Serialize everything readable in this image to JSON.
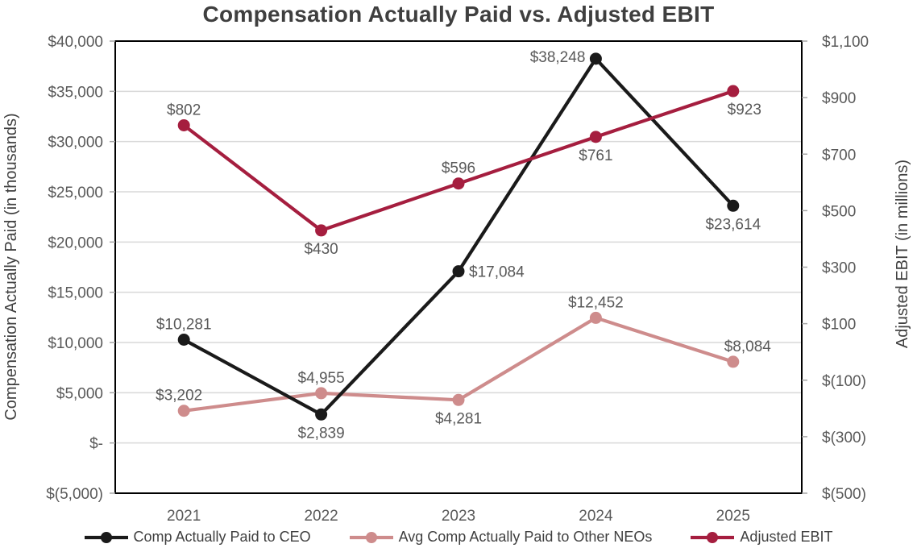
{
  "chart_data": {
    "type": "line",
    "title": "Compensation Actually Paid vs. Adjusted EBIT",
    "categories": [
      "2021",
      "2022",
      "2023",
      "2024",
      "2025"
    ],
    "grid": true,
    "legend_position": "bottom",
    "left_axis": {
      "label": "Compensation Actually Paid (in thousands)",
      "min": -5000,
      "max": 40000,
      "step": 5000,
      "tick_labels": [
        "$40,000",
        "$35,000",
        "$30,000",
        "$25,000",
        "$20,000",
        "$15,000",
        "$10,000",
        "$5,000",
        "$-",
        "$(5,000)"
      ]
    },
    "right_axis": {
      "label": "Adjusted EBIT (in millions)",
      "min": -500,
      "max": 1100,
      "step": 200,
      "tick_labels": [
        "$1,100",
        "$900",
        "$700",
        "$500",
        "$300",
        "$100",
        "$(100)",
        "$(300)",
        "$(500)"
      ]
    },
    "series": [
      {
        "name": "Avg Comp Actually Paid to Other NEOs",
        "axis": "left",
        "color": "#ce8c8c",
        "values": [
          3202,
          4955,
          4281,
          12452,
          8084
        ],
        "labels": [
          {
            "text": "$3,202",
            "pos": "above",
            "dx": -6
          },
          {
            "text": "$4,955",
            "pos": "above"
          },
          {
            "text": "$4,281",
            "pos": "below"
          },
          {
            "text": "$12,452",
            "pos": "above"
          },
          {
            "text": "$8,084",
            "pos": "above",
            "dx": 18
          }
        ]
      },
      {
        "name": "Comp Actually Paid to CEO",
        "axis": "left",
        "color": "#1a1a1a",
        "values": [
          10281,
          2839,
          17084,
          38248,
          23614
        ],
        "labels": [
          {
            "text": "$10,281",
            "pos": "above"
          },
          {
            "text": "$2,839",
            "pos": "below"
          },
          {
            "text": "$17,084",
            "pos": "right"
          },
          {
            "text": "$38,248",
            "pos": "left"
          },
          {
            "text": "$23,614",
            "pos": "below"
          }
        ]
      },
      {
        "name": "Adjusted EBIT",
        "axis": "right",
        "color": "#a51e3f",
        "values": [
          802,
          430,
          596,
          761,
          923
        ],
        "labels": [
          {
            "text": "$802",
            "pos": "above"
          },
          {
            "text": "$430",
            "pos": "below"
          },
          {
            "text": "$596",
            "pos": "above"
          },
          {
            "text": "$761",
            "pos": "below"
          },
          {
            "text": "$923",
            "pos": "below",
            "dx": 14
          }
        ]
      }
    ],
    "legend_order": [
      "Comp Actually Paid to CEO",
      "Avg Comp Actually Paid to Other NEOs",
      "Adjusted EBIT"
    ],
    "colors": {
      "grid": "#d9d9d9",
      "plot_border": "#000000",
      "tick_mark": "#a6a6a6",
      "tick_text": "#595959",
      "data_label_text": "#595959",
      "axis_title_text": "#404040"
    }
  }
}
